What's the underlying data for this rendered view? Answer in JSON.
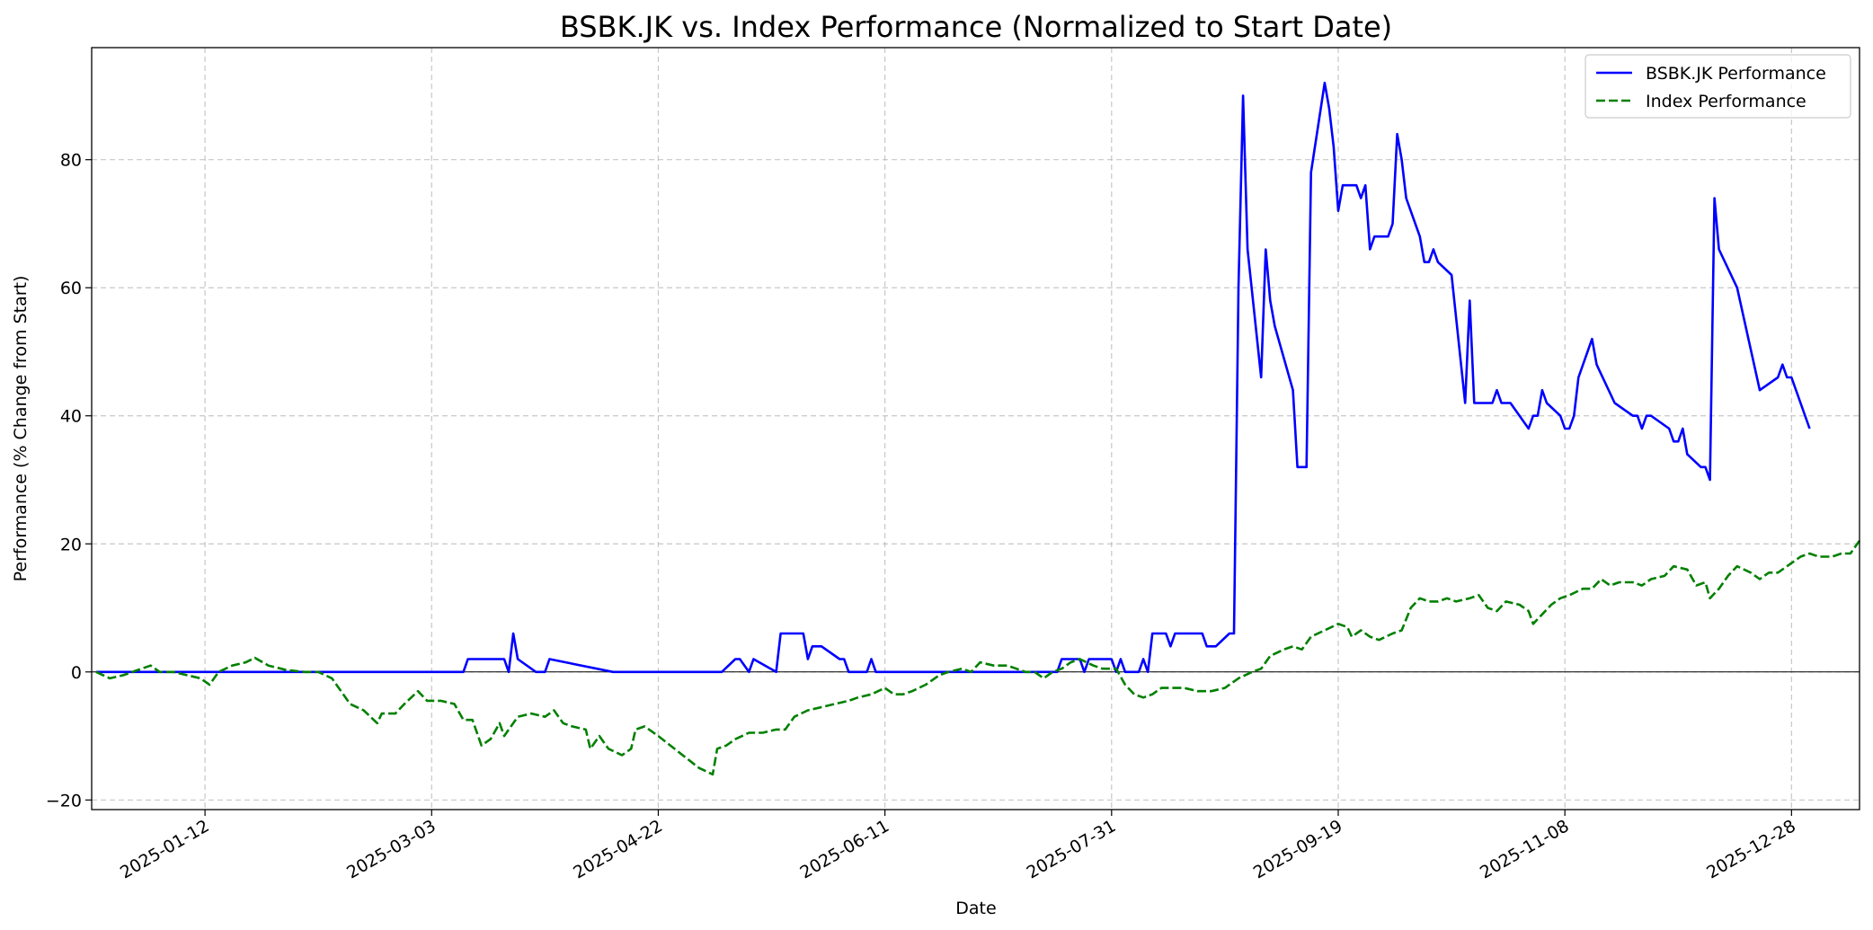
{
  "chart_data": {
    "type": "line",
    "title": "BSBK.JK vs. Index Performance (Normalized to Start Date)",
    "xlabel": "Date",
    "ylabel": "Performance (% Change from Start)",
    "x_range": [
      "2024-12-18",
      "2026-01-12"
    ],
    "ylim": [
      -21.5,
      97.5
    ],
    "x_ticks": [
      "2025-01-12",
      "2025-03-03",
      "2025-04-22",
      "2025-06-11",
      "2025-07-31",
      "2025-09-19",
      "2025-11-08",
      "2025-12-28"
    ],
    "y_ticks": [
      -20,
      0,
      20,
      40,
      60,
      80
    ],
    "grid": true,
    "zero_line": true,
    "legend_position": "top-right",
    "series": [
      {
        "name": "BSBK.JK Performance",
        "color": "#0000ff",
        "style": "solid",
        "points": [
          [
            "2024-12-19",
            0
          ],
          [
            "2025-03-10",
            0
          ],
          [
            "2025-03-11",
            2
          ],
          [
            "2025-03-19",
            2
          ],
          [
            "2025-03-20",
            0
          ],
          [
            "2025-03-21",
            6
          ],
          [
            "2025-03-22",
            2
          ],
          [
            "2025-03-26",
            0
          ],
          [
            "2025-03-28",
            0
          ],
          [
            "2025-03-29",
            2
          ],
          [
            "2025-04-12",
            0
          ],
          [
            "2025-05-06",
            0
          ],
          [
            "2025-05-09",
            2
          ],
          [
            "2025-05-10",
            2
          ],
          [
            "2025-05-12",
            0
          ],
          [
            "2025-05-13",
            2
          ],
          [
            "2025-05-18",
            0
          ],
          [
            "2025-05-19",
            6
          ],
          [
            "2025-05-24",
            6
          ],
          [
            "2025-05-25",
            2
          ],
          [
            "2025-05-26",
            4
          ],
          [
            "2025-05-28",
            4
          ],
          [
            "2025-06-01",
            2
          ],
          [
            "2025-06-02",
            2
          ],
          [
            "2025-06-03",
            0
          ],
          [
            "2025-06-07",
            0
          ],
          [
            "2025-06-08",
            2
          ],
          [
            "2025-06-09",
            0
          ],
          [
            "2025-07-19",
            0
          ],
          [
            "2025-07-20",
            2
          ],
          [
            "2025-07-24",
            2
          ],
          [
            "2025-07-25",
            0
          ],
          [
            "2025-07-26",
            2
          ],
          [
            "2025-07-31",
            2
          ],
          [
            "2025-08-01",
            0
          ],
          [
            "2025-08-02",
            2
          ],
          [
            "2025-08-03",
            0
          ],
          [
            "2025-08-06",
            0
          ],
          [
            "2025-08-07",
            2
          ],
          [
            "2025-08-08",
            0
          ],
          [
            "2025-08-09",
            6
          ],
          [
            "2025-08-12",
            6
          ],
          [
            "2025-08-13",
            4
          ],
          [
            "2025-08-14",
            6
          ],
          [
            "2025-08-20",
            6
          ],
          [
            "2025-08-21",
            4
          ],
          [
            "2025-08-23",
            4
          ],
          [
            "2025-08-26",
            6
          ],
          [
            "2025-08-27",
            6
          ],
          [
            "2025-08-28",
            60
          ],
          [
            "2025-08-29",
            90
          ],
          [
            "2025-08-30",
            66
          ],
          [
            "2025-09-02",
            46
          ],
          [
            "2025-09-03",
            66
          ],
          [
            "2025-09-04",
            58
          ],
          [
            "2025-09-05",
            54
          ],
          [
            "2025-09-09",
            44
          ],
          [
            "2025-09-10",
            32
          ],
          [
            "2025-09-12",
            32
          ],
          [
            "2025-09-13",
            78
          ],
          [
            "2025-09-16",
            92
          ],
          [
            "2025-09-17",
            88
          ],
          [
            "2025-09-18",
            82
          ],
          [
            "2025-09-19",
            72
          ],
          [
            "2025-09-20",
            76
          ],
          [
            "2025-09-23",
            76
          ],
          [
            "2025-09-24",
            74
          ],
          [
            "2025-09-25",
            76
          ],
          [
            "2025-09-26",
            66
          ],
          [
            "2025-09-27",
            68
          ],
          [
            "2025-09-30",
            68
          ],
          [
            "2025-10-01",
            70
          ],
          [
            "2025-10-02",
            84
          ],
          [
            "2025-10-03",
            80
          ],
          [
            "2025-10-04",
            74
          ],
          [
            "2025-10-07",
            68
          ],
          [
            "2025-10-08",
            64
          ],
          [
            "2025-10-09",
            64
          ],
          [
            "2025-10-10",
            66
          ],
          [
            "2025-10-11",
            64
          ],
          [
            "2025-10-14",
            62
          ],
          [
            "2025-10-17",
            42
          ],
          [
            "2025-10-18",
            58
          ],
          [
            "2025-10-19",
            42
          ],
          [
            "2025-10-23",
            42
          ],
          [
            "2025-10-24",
            44
          ],
          [
            "2025-10-25",
            42
          ],
          [
            "2025-10-27",
            42
          ],
          [
            "2025-10-31",
            38
          ],
          [
            "2025-11-01",
            40
          ],
          [
            "2025-11-02",
            40
          ],
          [
            "2025-11-03",
            44
          ],
          [
            "2025-11-04",
            42
          ],
          [
            "2025-11-07",
            40
          ],
          [
            "2025-11-08",
            38
          ],
          [
            "2025-11-09",
            38
          ],
          [
            "2025-11-10",
            40
          ],
          [
            "2025-11-11",
            46
          ],
          [
            "2025-11-14",
            52
          ],
          [
            "2025-11-15",
            48
          ],
          [
            "2025-11-19",
            42
          ],
          [
            "2025-11-23",
            40
          ],
          [
            "2025-11-24",
            40
          ],
          [
            "2025-11-25",
            38
          ],
          [
            "2025-11-26",
            40
          ],
          [
            "2025-11-27",
            40
          ],
          [
            "2025-12-01",
            38
          ],
          [
            "2025-12-02",
            36
          ],
          [
            "2025-12-03",
            36
          ],
          [
            "2025-12-04",
            38
          ],
          [
            "2025-12-05",
            34
          ],
          [
            "2025-12-08",
            32
          ],
          [
            "2025-12-09",
            32
          ],
          [
            "2025-12-10",
            30
          ],
          [
            "2025-12-11",
            74
          ],
          [
            "2025-12-12",
            66
          ],
          [
            "2025-12-16",
            60
          ],
          [
            "2025-12-21",
            44
          ],
          [
            "2025-12-25",
            46
          ],
          [
            "2025-12-26",
            48
          ],
          [
            "2025-12-27",
            46
          ],
          [
            "2025-12-28",
            46
          ],
          [
            "2026-01-01",
            38
          ]
        ]
      },
      {
        "name": "Index Performance",
        "color": "#008000",
        "style": "dashed",
        "points": [
          [
            "2024-12-19",
            0
          ],
          [
            "2024-12-22",
            -1
          ],
          [
            "2024-12-25",
            -0.5
          ],
          [
            "2024-12-29",
            0.5
          ],
          [
            "2024-12-31",
            1
          ],
          [
            "2025-01-02",
            0
          ],
          [
            "2025-01-05",
            0
          ],
          [
            "2025-01-08",
            -0.5
          ],
          [
            "2025-01-11",
            -1
          ],
          [
            "2025-01-13",
            -2
          ],
          [
            "2025-01-15",
            0
          ],
          [
            "2025-01-18",
            1
          ],
          [
            "2025-01-21",
            1.5
          ],
          [
            "2025-01-23",
            2.2
          ],
          [
            "2025-01-26",
            1
          ],
          [
            "2025-01-30",
            0.3
          ],
          [
            "2025-02-03",
            0
          ],
          [
            "2025-02-06",
            0
          ],
          [
            "2025-02-09",
            -1
          ],
          [
            "2025-02-13",
            -5
          ],
          [
            "2025-02-16",
            -6
          ],
          [
            "2025-02-19",
            -8
          ],
          [
            "2025-02-20",
            -6.5
          ],
          [
            "2025-02-23",
            -6.5
          ],
          [
            "2025-02-25",
            -5
          ],
          [
            "2025-02-28",
            -3
          ],
          [
            "2025-03-02",
            -4.5
          ],
          [
            "2025-03-05",
            -4.5
          ],
          [
            "2025-03-08",
            -5
          ],
          [
            "2025-03-10",
            -7.5
          ],
          [
            "2025-03-12",
            -7.5
          ],
          [
            "2025-03-14",
            -11.5
          ],
          [
            "2025-03-16",
            -10.5
          ],
          [
            "2025-03-18",
            -8
          ],
          [
            "2025-03-19",
            -10
          ],
          [
            "2025-03-22",
            -7
          ],
          [
            "2025-03-25",
            -6.5
          ],
          [
            "2025-03-28",
            -7
          ],
          [
            "2025-03-30",
            -6
          ],
          [
            "2025-04-01",
            -8
          ],
          [
            "2025-04-03",
            -8.5
          ],
          [
            "2025-04-06",
            -9
          ],
          [
            "2025-04-07",
            -12
          ],
          [
            "2025-04-09",
            -10
          ],
          [
            "2025-04-11",
            -12
          ],
          [
            "2025-04-14",
            -13
          ],
          [
            "2025-04-16",
            -12
          ],
          [
            "2025-04-17",
            -9
          ],
          [
            "2025-04-19",
            -8.5
          ],
          [
            "2025-04-22",
            -10
          ],
          [
            "2025-05-01",
            -15
          ],
          [
            "2025-05-04",
            -16
          ],
          [
            "2025-05-05",
            -12
          ],
          [
            "2025-05-07",
            -11.5
          ],
          [
            "2025-05-09",
            -10.5
          ],
          [
            "2025-05-12",
            -9.5
          ],
          [
            "2025-05-15",
            -9.5
          ],
          [
            "2025-05-18",
            -9
          ],
          [
            "2025-05-20",
            -9
          ],
          [
            "2025-05-22",
            -7
          ],
          [
            "2025-05-25",
            -6
          ],
          [
            "2025-05-28",
            -5.5
          ],
          [
            "2025-05-31",
            -5
          ],
          [
            "2025-06-03",
            -4.5
          ],
          [
            "2025-06-05",
            -4
          ],
          [
            "2025-06-08",
            -3.5
          ],
          [
            "2025-06-11",
            -2.5
          ],
          [
            "2025-06-13",
            -3.5
          ],
          [
            "2025-06-15",
            -3.5
          ],
          [
            "2025-06-17",
            -3
          ],
          [
            "2025-06-20",
            -2
          ],
          [
            "2025-06-23",
            -0.5
          ],
          [
            "2025-06-25",
            0
          ],
          [
            "2025-06-28",
            0.5
          ],
          [
            "2025-06-30",
            0
          ],
          [
            "2025-07-02",
            1.5
          ],
          [
            "2025-07-05",
            1
          ],
          [
            "2025-07-08",
            1
          ],
          [
            "2025-07-10",
            0.5
          ],
          [
            "2025-07-12",
            0
          ],
          [
            "2025-07-14",
            0
          ],
          [
            "2025-07-16",
            -1
          ],
          [
            "2025-07-18",
            0
          ],
          [
            "2025-07-20",
            0.5
          ],
          [
            "2025-07-22",
            1.5
          ],
          [
            "2025-07-24",
            2
          ],
          [
            "2025-07-27",
            1
          ],
          [
            "2025-07-29",
            0.5
          ],
          [
            "2025-08-01",
            0.5
          ],
          [
            "2025-08-03",
            -2
          ],
          [
            "2025-08-05",
            -3.5
          ],
          [
            "2025-08-07",
            -4
          ],
          [
            "2025-08-09",
            -3.5
          ],
          [
            "2025-08-11",
            -2.5
          ],
          [
            "2025-08-14",
            -2.5
          ],
          [
            "2025-08-16",
            -2.5
          ],
          [
            "2025-08-19",
            -3
          ],
          [
            "2025-08-22",
            -3
          ],
          [
            "2025-08-25",
            -2.5
          ],
          [
            "2025-08-28",
            -1
          ],
          [
            "2025-08-31",
            0
          ],
          [
            "2025-09-02",
            0.5
          ],
          [
            "2025-09-04",
            2.5
          ],
          [
            "2025-09-07",
            3.5
          ],
          [
            "2025-09-09",
            4
          ],
          [
            "2025-09-11",
            3.5
          ],
          [
            "2025-09-13",
            5.5
          ],
          [
            "2025-09-16",
            6.5
          ],
          [
            "2025-09-19",
            7.5
          ],
          [
            "2025-09-21",
            7
          ],
          [
            "2025-09-22",
            5.5
          ],
          [
            "2025-09-24",
            6.5
          ],
          [
            "2025-09-26",
            5.5
          ],
          [
            "2025-09-28",
            5
          ],
          [
            "2025-10-01",
            6
          ],
          [
            "2025-10-03",
            6.5
          ],
          [
            "2025-10-05",
            10
          ],
          [
            "2025-10-07",
            11.5
          ],
          [
            "2025-10-09",
            11
          ],
          [
            "2025-10-11",
            11
          ],
          [
            "2025-10-13",
            11.5
          ],
          [
            "2025-10-15",
            11
          ],
          [
            "2025-10-18",
            11.5
          ],
          [
            "2025-10-20",
            12
          ],
          [
            "2025-10-22",
            10
          ],
          [
            "2025-10-24",
            9.5
          ],
          [
            "2025-10-26",
            11
          ],
          [
            "2025-10-29",
            10.5
          ],
          [
            "2025-10-31",
            9.5
          ],
          [
            "2025-11-01",
            7.5
          ],
          [
            "2025-11-03",
            9
          ],
          [
            "2025-11-05",
            10.5
          ],
          [
            "2025-11-07",
            11.5
          ],
          [
            "2025-11-09",
            12
          ],
          [
            "2025-11-12",
            13
          ],
          [
            "2025-11-14",
            13
          ],
          [
            "2025-11-16",
            14.5
          ],
          [
            "2025-11-18",
            13.5
          ],
          [
            "2025-11-20",
            14
          ],
          [
            "2025-11-23",
            14
          ],
          [
            "2025-11-25",
            13.5
          ],
          [
            "2025-11-27",
            14.5
          ],
          [
            "2025-11-30",
            15
          ],
          [
            "2025-12-02",
            16.5
          ],
          [
            "2025-12-05",
            16
          ],
          [
            "2025-12-07",
            13.5
          ],
          [
            "2025-12-09",
            14
          ],
          [
            "2025-12-10",
            11.5
          ],
          [
            "2025-12-12",
            13
          ],
          [
            "2025-12-14",
            15
          ],
          [
            "2025-12-16",
            16.5
          ],
          [
            "2025-12-19",
            15.5
          ],
          [
            "2025-12-21",
            14.5
          ],
          [
            "2025-12-23",
            15.5
          ],
          [
            "2025-12-25",
            15.5
          ],
          [
            "2025-12-27",
            16.5
          ],
          [
            "2025-12-30",
            18
          ],
          [
            "2026-01-01",
            18.5
          ],
          [
            "2026-01-03",
            18
          ],
          [
            "2026-01-06",
            18
          ],
          [
            "2026-01-08",
            18.5
          ],
          [
            "2026-01-10",
            18.5
          ],
          [
            "2026-01-11",
            19.5
          ],
          [
            "2026-01-12",
            20.5
          ]
        ]
      }
    ]
  }
}
